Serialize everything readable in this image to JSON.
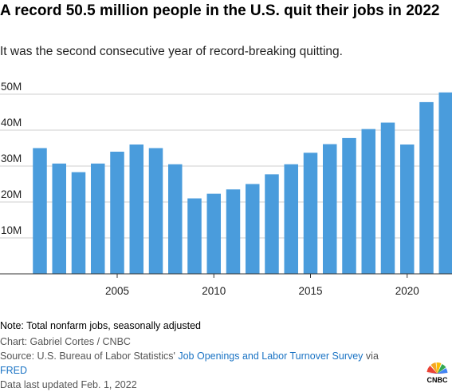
{
  "header": {
    "title": "A record 50.5 million people in the U.S. quit their jobs in 2022",
    "subtitle": "It was the second consecutive year of record-breaking quitting."
  },
  "footer": {
    "note": "Note: Total nonfarm jobs, seasonally adjusted",
    "credit": "Chart: Gabriel Cortes / CNBC",
    "source_prefix": "Source: U.S. Bureau of Labor Statistics'",
    "source_link": "Job Openings and Labor Turnover Survey",
    "source_via": "via",
    "source_link2": "FRED",
    "updated": "Data last updated Feb. 1, 2022",
    "logo_text": "CNBC"
  },
  "colors": {
    "bar": "#4a9cdc",
    "grid": "#cfcfcf",
    "link": "#1a73c4"
  },
  "chart_data": {
    "type": "bar",
    "title": "A record 50.5 million people in the U.S. quit their jobs in 2022",
    "subtitle": "It was the second consecutive year of record-breaking quitting.",
    "xlabel": "",
    "ylabel": "",
    "categories": [
      2001,
      2002,
      2003,
      2004,
      2005,
      2006,
      2007,
      2008,
      2009,
      2010,
      2011,
      2012,
      2013,
      2014,
      2015,
      2016,
      2017,
      2018,
      2019,
      2020,
      2021,
      2022
    ],
    "values": [
      35.0,
      30.7,
      28.3,
      30.7,
      34.0,
      36.0,
      35.0,
      30.5,
      21.0,
      22.3,
      23.5,
      25.0,
      27.7,
      30.5,
      33.7,
      36.1,
      37.8,
      40.3,
      42.1,
      36.0,
      47.8,
      50.5
    ],
    "ylim": [
      0,
      50
    ],
    "yticks": [
      10,
      20,
      30,
      40,
      50
    ],
    "ytick_labels": [
      "10M",
      "20M",
      "30M",
      "40M",
      "50M"
    ],
    "xticks": [
      2005,
      2010,
      2015,
      2020
    ],
    "xtick_labels": [
      "2005",
      "2010",
      "2015",
      "2020"
    ],
    "grid": true,
    "legend": "none"
  }
}
